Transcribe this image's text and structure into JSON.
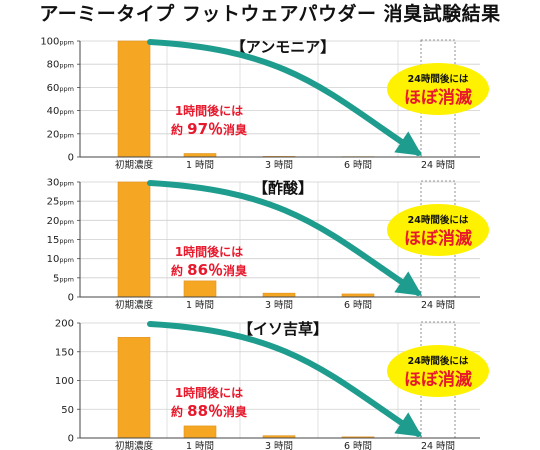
{
  "title": "アーミータイプ フットウェアパウダー 消臭試験結果",
  "colors": {
    "bar": "#F5A623",
    "bar_edge": "#E0911A",
    "grid": "#cfcfcf",
    "axis": "#444444",
    "arrow": "#1E9C8E",
    "percent_text": "#E8182C",
    "callout_fill": "#FFF200",
    "callout_text": "#E8182C"
  },
  "chart_data": [
    {
      "type": "bar",
      "title": "【アンモニア】",
      "categories": [
        "初期濃度",
        "1 時間",
        "3 時間",
        "6 時間",
        "24 時間"
      ],
      "values": [
        100,
        3,
        0.5,
        0.3,
        0
      ],
      "ylim": [
        0,
        100
      ],
      "yticks": [
        0,
        20,
        40,
        60,
        80,
        100
      ],
      "ytick_labels": [
        "0",
        "20ppm",
        "40ppm",
        "60ppm",
        "80ppm",
        "100ppm"
      ],
      "grid": true,
      "annotation_line1": "1時間後には",
      "annotation_prefix": "約",
      "annotation_percent": "97％",
      "annotation_suffix": "消臭",
      "callout_small": "24時間後には",
      "callout_big": "ほぼ消滅"
    },
    {
      "type": "bar",
      "title": "【酢酸】",
      "categories": [
        "初期濃度",
        "1 時間",
        "3 時間",
        "6 時間",
        "24 時間"
      ],
      "values": [
        30,
        4.2,
        1.0,
        0.8,
        0
      ],
      "ylim": [
        0,
        30
      ],
      "yticks": [
        0,
        5,
        10,
        15,
        20,
        25,
        30
      ],
      "ytick_labels": [
        "0",
        "5ppm",
        "10ppm",
        "15ppm",
        "20ppm",
        "25ppm",
        "30ppm"
      ],
      "grid": true,
      "annotation_line1": "1時間後には",
      "annotation_prefix": "約",
      "annotation_percent": "86％",
      "annotation_suffix": "消臭",
      "callout_small": "24時間後には",
      "callout_big": "ほぼ消滅"
    },
    {
      "type": "bar",
      "title": "【イソ吉草】",
      "categories": [
        "初期濃度",
        "1 時間",
        "3 時間",
        "6 時間",
        "24 時間"
      ],
      "values": [
        175,
        21,
        4,
        2,
        0
      ],
      "ylim": [
        0,
        200
      ],
      "yticks": [
        0,
        50,
        100,
        150,
        200
      ],
      "ytick_labels": [
        "0",
        "50",
        "100",
        "150",
        "200"
      ],
      "grid": true,
      "annotation_line1": "1時間後には",
      "annotation_prefix": "約",
      "annotation_percent": "88％",
      "annotation_suffix": "消臭",
      "callout_small": "24時間後には",
      "callout_big": "ほぼ消滅"
    }
  ]
}
